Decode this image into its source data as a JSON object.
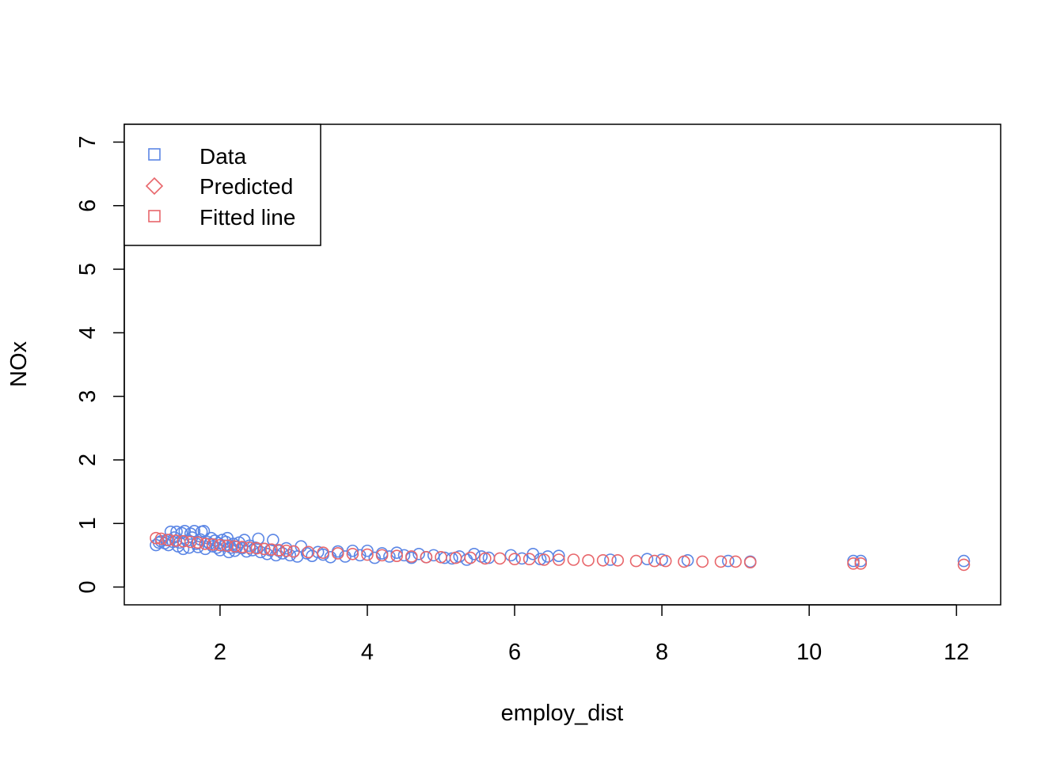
{
  "chart_data": {
    "type": "scatter",
    "title": "",
    "xlabel": "employ_dist",
    "ylabel": "NOx",
    "xlim": [
      0.7,
      12.6
    ],
    "ylim": [
      -0.28,
      7.28
    ],
    "x_ticks": [
      2,
      4,
      6,
      8,
      10,
      12
    ],
    "y_ticks": [
      0,
      1,
      2,
      3,
      4,
      5,
      6,
      7
    ],
    "grid": false,
    "legend": {
      "placement": "top-left",
      "entries": [
        {
          "label": "Data",
          "marker": "square",
          "color": "#5B86E5"
        },
        {
          "label": "Predicted",
          "marker": "diamond",
          "color": "#E8666B"
        },
        {
          "label": "Fitted line",
          "marker": "square",
          "color": "#E8666B"
        }
      ]
    },
    "series": [
      {
        "name": "Data",
        "color": "#5B86E5",
        "marker": "open-circle",
        "points": [
          [
            1.13,
            0.66
          ],
          [
            1.17,
            0.7
          ],
          [
            1.2,
            0.72
          ],
          [
            1.25,
            0.69
          ],
          [
            1.28,
            0.74
          ],
          [
            1.3,
            0.66
          ],
          [
            1.33,
            0.87
          ],
          [
            1.36,
            0.71
          ],
          [
            1.38,
            0.78
          ],
          [
            1.41,
            0.87
          ],
          [
            1.43,
            0.64
          ],
          [
            1.45,
            0.7
          ],
          [
            1.48,
            0.85
          ],
          [
            1.5,
            0.6
          ],
          [
            1.52,
            0.88
          ],
          [
            1.55,
            0.73
          ],
          [
            1.58,
            0.62
          ],
          [
            1.6,
            0.84
          ],
          [
            1.62,
            0.78
          ],
          [
            1.65,
            0.88
          ],
          [
            1.68,
            0.68
          ],
          [
            1.7,
            0.63
          ],
          [
            1.73,
            0.75
          ],
          [
            1.75,
            0.87
          ],
          [
            1.78,
            0.88
          ],
          [
            1.8,
            0.6
          ],
          [
            1.83,
            0.71
          ],
          [
            1.86,
            0.68
          ],
          [
            1.88,
            0.77
          ],
          [
            1.9,
            0.64
          ],
          [
            1.93,
            0.73
          ],
          [
            1.96,
            0.62
          ],
          [
            1.98,
            0.69
          ],
          [
            2.0,
            0.58
          ],
          [
            2.03,
            0.74
          ],
          [
            2.06,
            0.65
          ],
          [
            2.08,
            0.71
          ],
          [
            2.1,
            0.77
          ],
          [
            2.12,
            0.55
          ],
          [
            2.15,
            0.62
          ],
          [
            2.18,
            0.68
          ],
          [
            2.2,
            0.57
          ],
          [
            2.23,
            0.63
          ],
          [
            2.26,
            0.7
          ],
          [
            2.3,
            0.61
          ],
          [
            2.33,
            0.74
          ],
          [
            2.36,
            0.56
          ],
          [
            2.4,
            0.65
          ],
          [
            2.44,
            0.58
          ],
          [
            2.48,
            0.62
          ],
          [
            2.52,
            0.76
          ],
          [
            2.55,
            0.55
          ],
          [
            2.6,
            0.6
          ],
          [
            2.64,
            0.52
          ],
          [
            2.68,
            0.58
          ],
          [
            2.72,
            0.74
          ],
          [
            2.76,
            0.5
          ],
          [
            2.8,
            0.57
          ],
          [
            2.85,
            0.53
          ],
          [
            2.9,
            0.61
          ],
          [
            2.95,
            0.5
          ],
          [
            3.0,
            0.56
          ],
          [
            3.05,
            0.48
          ],
          [
            3.1,
            0.64
          ],
          [
            3.18,
            0.53
          ],
          [
            3.25,
            0.49
          ],
          [
            3.33,
            0.55
          ],
          [
            3.4,
            0.51
          ],
          [
            3.5,
            0.47
          ],
          [
            3.6,
            0.56
          ],
          [
            3.7,
            0.48
          ],
          [
            3.8,
            0.57
          ],
          [
            3.9,
            0.5
          ],
          [
            4.0,
            0.57
          ],
          [
            4.1,
            0.46
          ],
          [
            4.2,
            0.53
          ],
          [
            4.3,
            0.48
          ],
          [
            4.4,
            0.54
          ],
          [
            4.5,
            0.5
          ],
          [
            4.6,
            0.46
          ],
          [
            4.7,
            0.52
          ],
          [
            4.8,
            0.47
          ],
          [
            4.9,
            0.5
          ],
          [
            5.05,
            0.46
          ],
          [
            5.15,
            0.45
          ],
          [
            5.25,
            0.48
          ],
          [
            5.35,
            0.43
          ],
          [
            5.45,
            0.52
          ],
          [
            5.55,
            0.48
          ],
          [
            5.65,
            0.46
          ],
          [
            5.95,
            0.5
          ],
          [
            6.1,
            0.45
          ],
          [
            6.25,
            0.52
          ],
          [
            6.35,
            0.44
          ],
          [
            6.45,
            0.48
          ],
          [
            6.6,
            0.49
          ],
          [
            7.3,
            0.43
          ],
          [
            7.8,
            0.44
          ],
          [
            8.0,
            0.43
          ],
          [
            8.35,
            0.42
          ],
          [
            8.9,
            0.41
          ],
          [
            9.2,
            0.4
          ],
          [
            10.6,
            0.41
          ],
          [
            10.7,
            0.41
          ],
          [
            12.1,
            0.41
          ]
        ]
      },
      {
        "name": "Predicted",
        "color": "#E8666B",
        "marker": "open-circle",
        "points": [
          [
            1.13,
            0.77
          ],
          [
            1.2,
            0.76
          ],
          [
            1.3,
            0.74
          ],
          [
            1.4,
            0.73
          ],
          [
            1.5,
            0.72
          ],
          [
            1.6,
            0.71
          ],
          [
            1.7,
            0.7
          ],
          [
            1.8,
            0.68
          ],
          [
            1.9,
            0.67
          ],
          [
            2.0,
            0.66
          ],
          [
            2.1,
            0.65
          ],
          [
            2.2,
            0.64
          ],
          [
            2.3,
            0.63
          ],
          [
            2.4,
            0.62
          ],
          [
            2.5,
            0.61
          ],
          [
            2.6,
            0.6
          ],
          [
            2.7,
            0.59
          ],
          [
            2.8,
            0.58
          ],
          [
            2.9,
            0.57
          ],
          [
            3.0,
            0.56
          ],
          [
            3.2,
            0.55
          ],
          [
            3.4,
            0.54
          ],
          [
            3.6,
            0.53
          ],
          [
            3.8,
            0.52
          ],
          [
            4.0,
            0.51
          ],
          [
            4.2,
            0.5
          ],
          [
            4.4,
            0.49
          ],
          [
            4.6,
            0.48
          ],
          [
            4.8,
            0.47
          ],
          [
            5.0,
            0.47
          ],
          [
            5.2,
            0.46
          ],
          [
            5.4,
            0.46
          ],
          [
            5.6,
            0.45
          ],
          [
            5.8,
            0.45
          ],
          [
            6.0,
            0.44
          ],
          [
            6.2,
            0.44
          ],
          [
            6.4,
            0.43
          ],
          [
            6.6,
            0.43
          ],
          [
            6.8,
            0.43
          ],
          [
            7.0,
            0.42
          ],
          [
            7.2,
            0.42
          ],
          [
            7.4,
            0.42
          ],
          [
            7.65,
            0.41
          ],
          [
            7.9,
            0.41
          ],
          [
            8.05,
            0.41
          ],
          [
            8.3,
            0.4
          ],
          [
            8.55,
            0.4
          ],
          [
            8.8,
            0.4
          ],
          [
            9.0,
            0.4
          ],
          [
            9.2,
            0.39
          ],
          [
            10.6,
            0.37
          ],
          [
            10.7,
            0.37
          ],
          [
            12.1,
            0.35
          ]
        ]
      }
    ]
  }
}
